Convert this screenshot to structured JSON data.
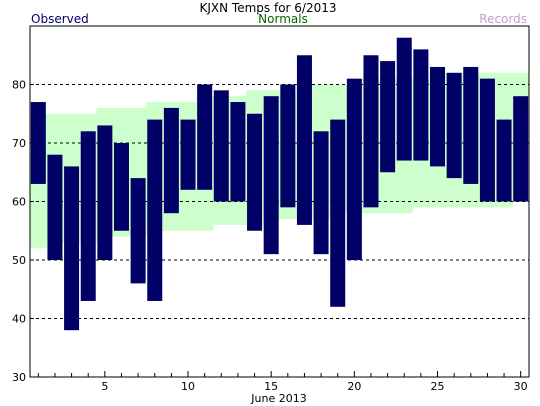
{
  "chart_data": {
    "type": "bar",
    "title": "KJXN Temps for 6/2013",
    "legend": {
      "observed": "Observed",
      "normals": "Normals",
      "records": "Records",
      "placement": "top"
    },
    "xlabel": "June 2013",
    "ylabel": "",
    "xlim": [
      1,
      30
    ],
    "ylim": [
      30,
      90
    ],
    "x_ticks": [
      5,
      10,
      15,
      20,
      25,
      30
    ],
    "y_ticks": [
      30,
      40,
      50,
      60,
      70,
      80
    ],
    "y_gridlines": [
      40,
      50,
      60,
      70,
      80
    ],
    "grid": "dashed horizontal",
    "days": [
      1,
      2,
      3,
      4,
      5,
      6,
      7,
      8,
      9,
      10,
      11,
      12,
      13,
      14,
      15,
      16,
      17,
      18,
      19,
      20,
      21,
      22,
      23,
      24,
      25,
      26,
      27,
      28,
      29,
      30
    ],
    "observed_high": [
      77,
      68,
      66,
      72,
      73,
      70,
      64,
      74,
      76,
      74,
      80,
      79,
      77,
      75,
      78,
      80,
      85,
      72,
      74,
      81,
      85,
      84,
      88,
      86,
      83,
      82,
      83,
      81,
      74,
      78
    ],
    "observed_low": [
      63,
      50,
      38,
      43,
      50,
      55,
      46,
      43,
      58,
      62,
      62,
      60,
      60,
      55,
      51,
      59,
      56,
      51,
      42,
      50,
      59,
      65,
      67,
      67,
      66,
      64,
      63,
      60,
      60,
      60
    ],
    "normal_high": [
      75,
      75,
      75,
      75,
      76,
      76,
      76,
      77,
      77,
      77,
      78,
      78,
      78,
      79,
      79,
      79,
      80,
      80,
      80,
      80,
      81,
      81,
      81,
      81,
      82,
      82,
      82,
      82,
      82,
      82
    ],
    "normal_low": [
      52,
      53,
      53,
      53,
      54,
      54,
      54,
      55,
      55,
      55,
      55,
      56,
      56,
      56,
      57,
      57,
      57,
      57,
      58,
      58,
      58,
      58,
      58,
      59,
      59,
      59,
      59,
      59,
      59,
      60
    ],
    "colors": {
      "observed": "#000066",
      "normals": "#ccffcc",
      "normals_label": "#006600",
      "records_label": "#cc99cc",
      "observed_label": "#000066",
      "grid": "#000000"
    }
  }
}
